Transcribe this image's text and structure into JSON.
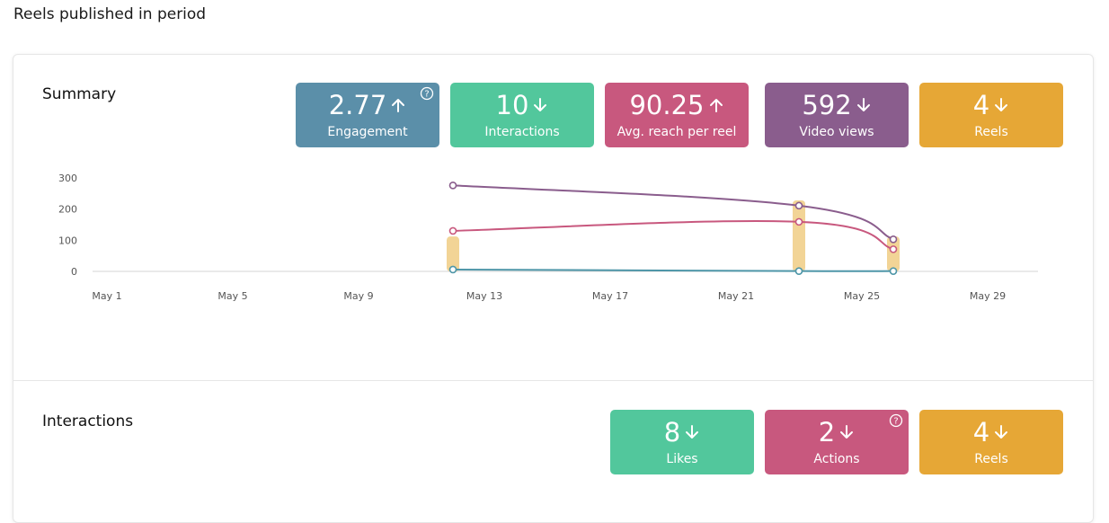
{
  "page": {
    "heading": "Reels published in period"
  },
  "summary": {
    "title": "Summary",
    "kpis": [
      {
        "value": "2.77",
        "trend": "up",
        "label": "Engagement",
        "color": "#5b8fa9",
        "help": true
      },
      {
        "value": "10",
        "trend": "down",
        "label": "Interactions",
        "color": "#52c79c",
        "help": false
      },
      {
        "value": "90.25",
        "trend": "up",
        "label": "Avg. reach per reel",
        "color": "#c8587e",
        "help": false
      },
      {
        "value": "592",
        "trend": "down",
        "label": "Video views",
        "color": "#8a5d8d",
        "help": false
      },
      {
        "value": "4",
        "trend": "down",
        "label": "Reels",
        "color": "#e6a736",
        "help": false
      }
    ]
  },
  "interactions": {
    "title": "Interactions",
    "kpis": [
      {
        "value": "8",
        "trend": "down",
        "label": "Likes",
        "color": "#52c79c",
        "help": false
      },
      {
        "value": "2",
        "trend": "down",
        "label": "Actions",
        "color": "#c8587e",
        "help": true
      },
      {
        "value": "4",
        "trend": "down",
        "label": "Reels",
        "color": "#e6a736",
        "help": false
      }
    ]
  },
  "chart_data": {
    "type": "line",
    "x_ticks": [
      "May 1",
      "May 5",
      "May 9",
      "May 13",
      "May 17",
      "May 21",
      "May 25",
      "May 29"
    ],
    "y_ticks": [
      "0",
      "100",
      "200",
      "300"
    ],
    "ylim": [
      0,
      300
    ],
    "xlim": [
      "2024-04-30",
      "2024-06-01"
    ],
    "grid": false,
    "series": [
      {
        "kind": "line",
        "color": "#8a5d8d",
        "points": [
          [
            "2024-05-12",
            276
          ],
          [
            "2024-05-23",
            211
          ],
          [
            "2024-05-26",
            103
          ]
        ]
      },
      {
        "kind": "line",
        "color": "#c8587e",
        "points": [
          [
            "2024-05-12",
            130
          ],
          [
            "2024-05-23",
            159
          ],
          [
            "2024-05-26",
            71
          ]
        ]
      },
      {
        "kind": "line",
        "color": "#4e96a8",
        "points": [
          [
            "2024-05-12",
            6
          ],
          [
            "2024-05-23",
            1
          ],
          [
            "2024-05-26",
            1
          ]
        ]
      },
      {
        "kind": "bar",
        "color": "#f2d496",
        "points": [
          [
            "2024-05-12",
            112
          ],
          [
            "2024-05-23",
            228
          ],
          [
            "2024-05-26",
            112
          ]
        ]
      }
    ]
  }
}
